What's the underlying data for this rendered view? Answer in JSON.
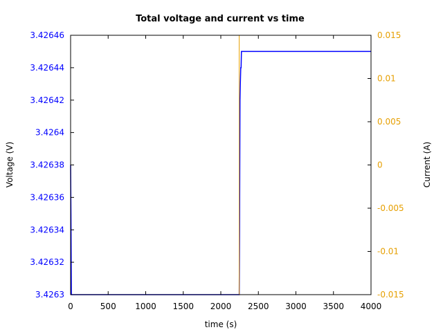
{
  "chart_data": {
    "type": "line",
    "title": "Total voltage and current vs time",
    "xlabel": "time (s)",
    "ylabel_left": "Voltage (V)",
    "ylabel_right": "Current (A)",
    "xlim": [
      0,
      4000
    ],
    "ylim_left": [
      3.4263,
      3.42646
    ],
    "ylim_right": [
      -0.015,
      0.015
    ],
    "x_ticks": [
      "0",
      "500",
      "1000",
      "1500",
      "2000",
      "2500",
      "3000",
      "3500",
      "4000"
    ],
    "y_left_ticks": [
      "3.4263",
      "3.42632",
      "3.42634",
      "3.42636",
      "3.42638",
      "3.4264",
      "3.42642",
      "3.42644",
      "3.42646"
    ],
    "y_right_ticks": [
      "-0.015",
      "-0.01",
      "-0.005",
      "0",
      "0.005",
      "0.01",
      "0.015"
    ],
    "grid": false,
    "colors": {
      "voltage": "#0000ff",
      "current": "#e69f00",
      "axis": "#000000"
    },
    "series": [
      {
        "axis": "left",
        "x": [
          0,
          5,
          10,
          2245,
          2250,
          2255,
          2260,
          2265,
          2270,
          2275,
          2280,
          4000
        ],
        "y": [
          3.42638,
          3.42635,
          3.4263,
          3.4263,
          3.42634,
          3.42642,
          3.42643,
          3.42644,
          3.42644,
          3.42645,
          3.42645,
          3.42645
        ]
      },
      {
        "axis": "right",
        "x": [
          2245,
          2245
        ],
        "y": [
          -0.015,
          0.015
        ]
      }
    ]
  }
}
